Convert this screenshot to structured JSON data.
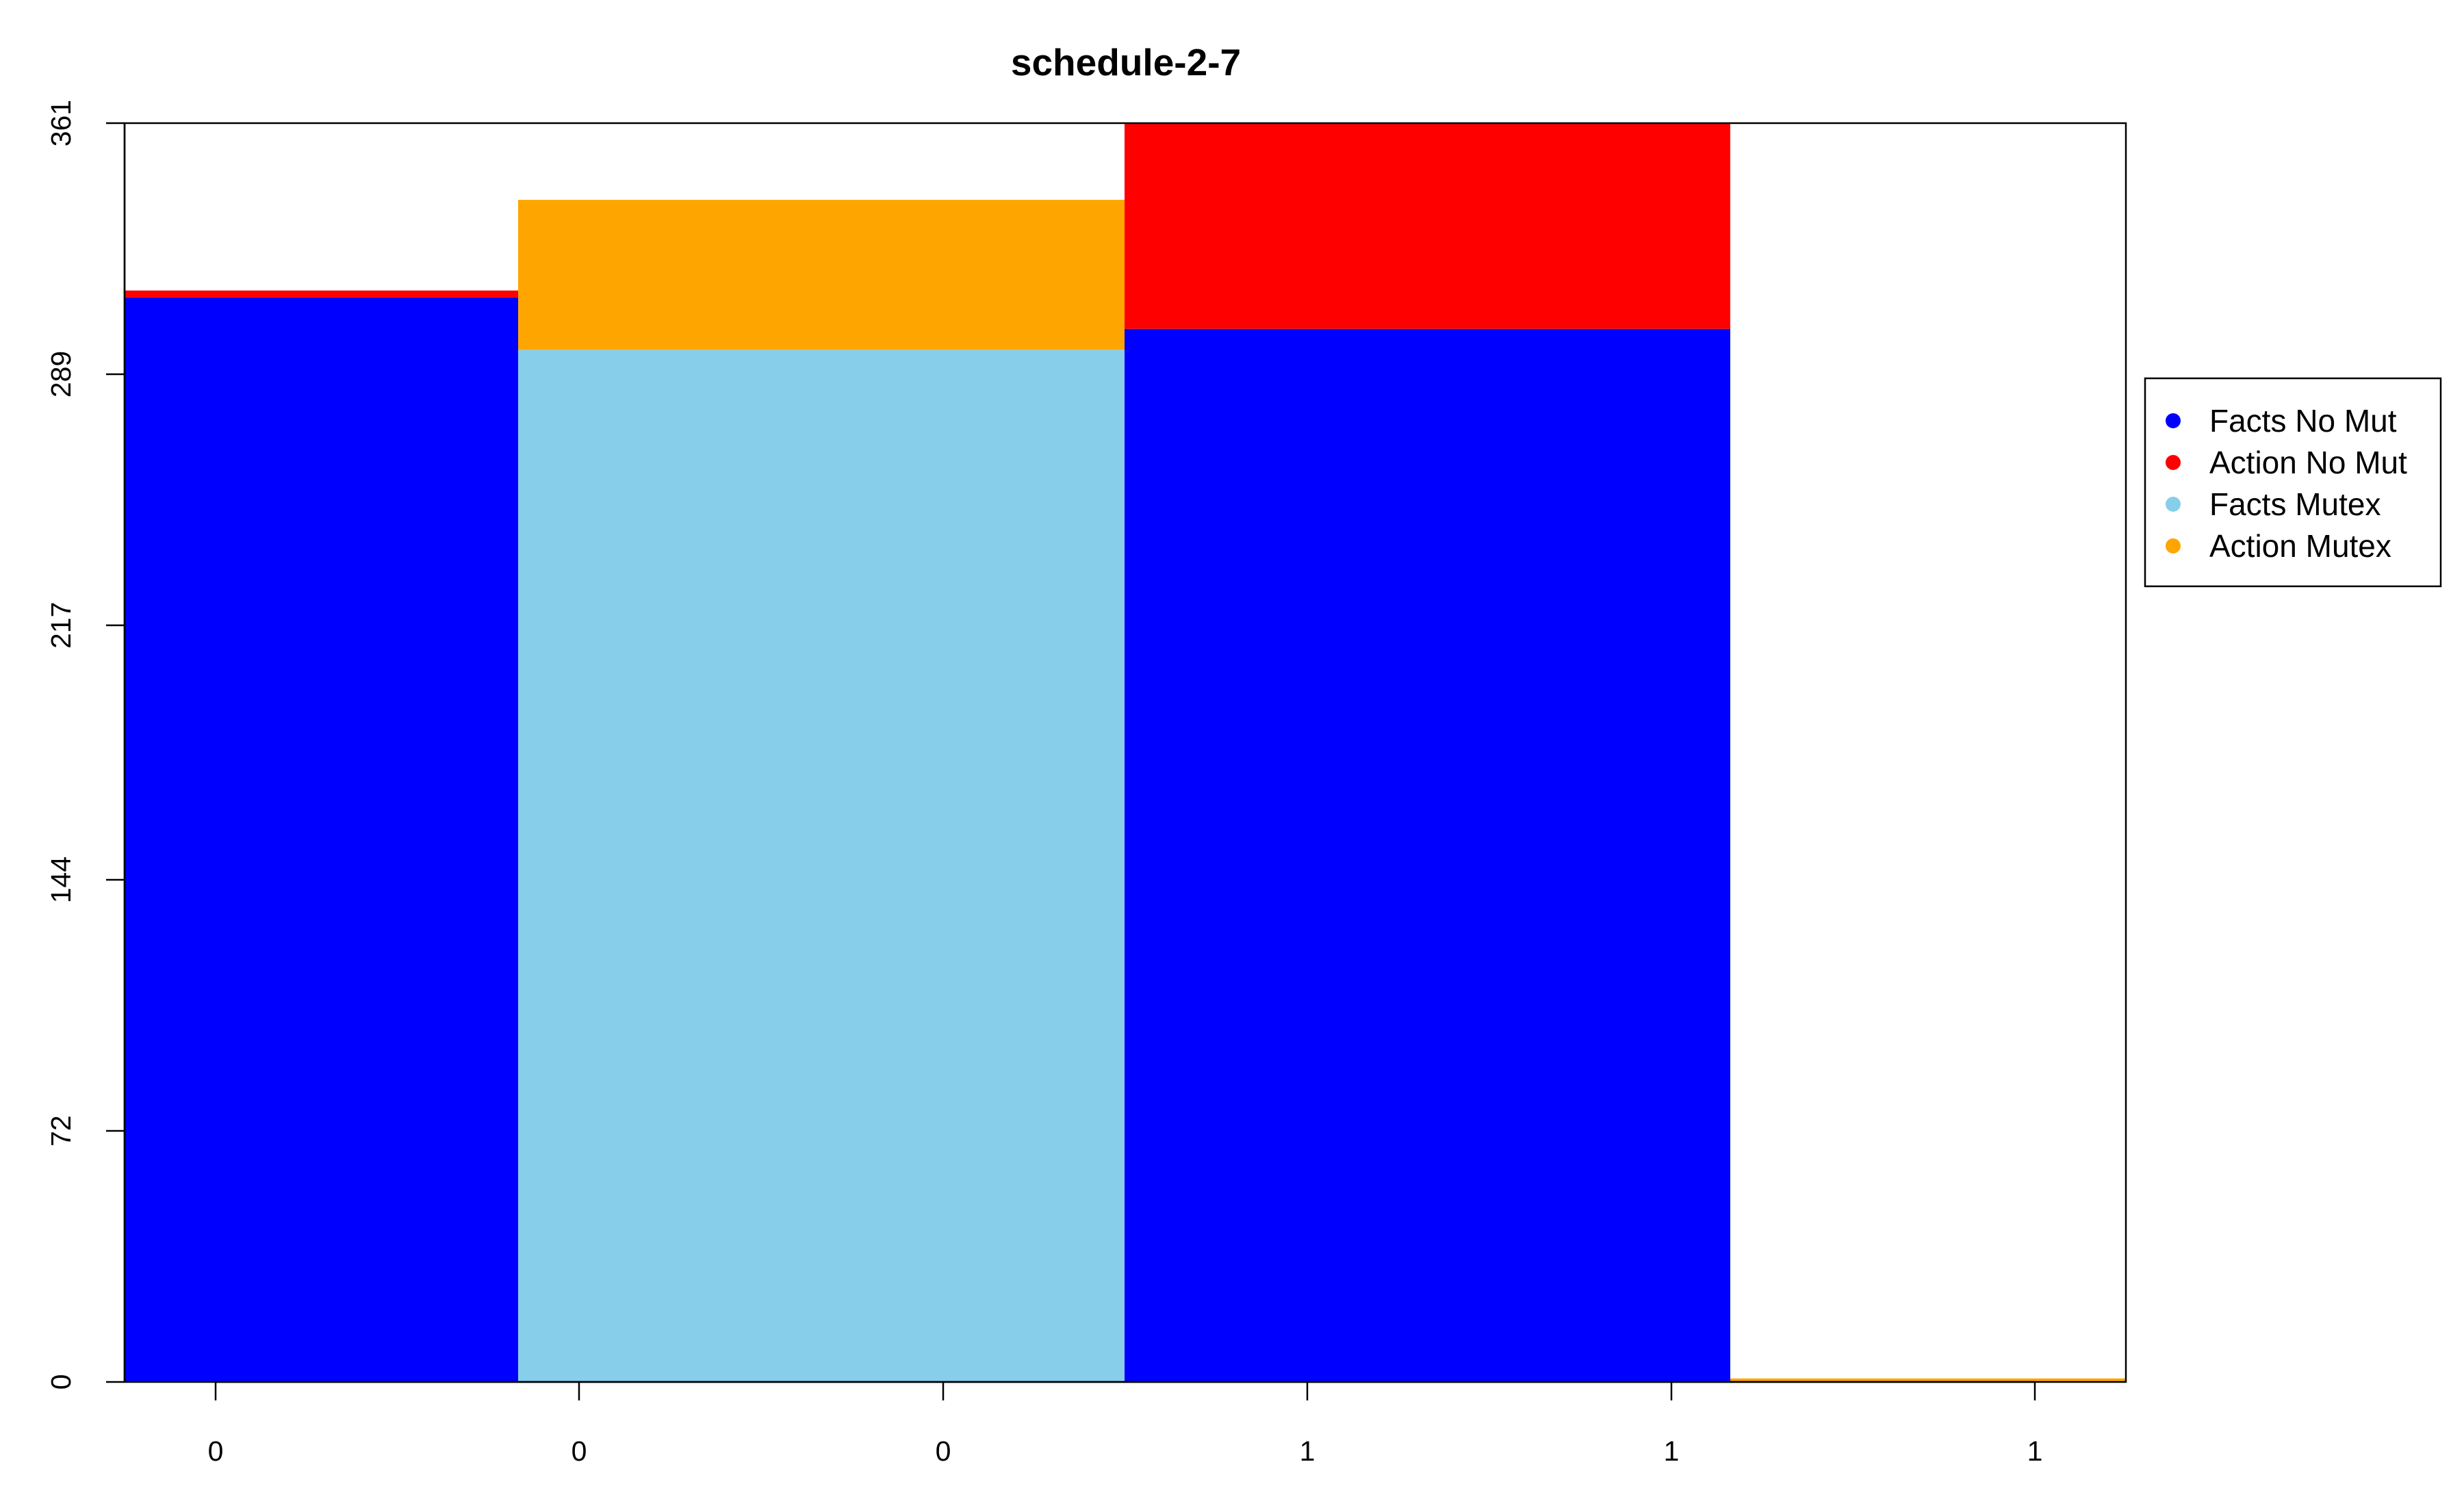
{
  "chart_data": {
    "type": "bar",
    "title": "schedule-2-7",
    "xlabel": "",
    "ylabel": "",
    "ylim": [
      0,
      361
    ],
    "yticks": [
      "0",
      "72",
      "144",
      "217",
      "289",
      "361"
    ],
    "xticks": [
      "0",
      "0",
      "0",
      "1",
      "1",
      "1"
    ],
    "grid": false,
    "legend_position": "right",
    "series": [
      {
        "name": "Facts No Mut",
        "color": "#0000ff"
      },
      {
        "name": "Action No Mut",
        "color": "#ff0000"
      },
      {
        "name": "Facts Mutex",
        "color": "#87ceeb"
      },
      {
        "name": "Action Mutex",
        "color": "#ffa500"
      }
    ],
    "bars": [
      {
        "segments": [
          {
            "series": "Facts No Mut",
            "value": 311
          },
          {
            "series": "Action No Mut",
            "value": 2
          }
        ]
      },
      {
        "segments": [
          {
            "series": "Facts Mutex",
            "value": 296
          },
          {
            "series": "Action Mutex",
            "value": 43
          }
        ]
      },
      {
        "segments": [
          {
            "series": "Facts No Mut",
            "value": 302
          },
          {
            "series": "Action No Mut",
            "value": 59
          }
        ]
      },
      {
        "segments": [
          {
            "series": "Facts Mutex",
            "value": 0
          },
          {
            "series": "Action Mutex",
            "value": 1
          }
        ]
      }
    ]
  }
}
